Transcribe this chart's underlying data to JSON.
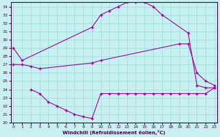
{
  "xlabel": "Windchill (Refroidissement éolien,°C)",
  "background_color": "#c8f0f0",
  "line_color": "#990099",
  "grid_color": "#99dddd",
  "xlim": [
    -0.3,
    23.3
  ],
  "ylim": [
    20,
    34.5
  ],
  "yticks": [
    20,
    21,
    22,
    23,
    24,
    25,
    26,
    27,
    28,
    29,
    30,
    31,
    32,
    33,
    34
  ],
  "xticks": [
    0,
    1,
    2,
    3,
    4,
    5,
    6,
    7,
    8,
    9,
    10,
    11,
    12,
    13,
    14,
    15,
    16,
    17,
    18,
    19,
    20,
    21,
    22,
    23
  ],
  "s1x": [
    0,
    1,
    9,
    10,
    11,
    12,
    13,
    14,
    15,
    16,
    17,
    20,
    21,
    22,
    23
  ],
  "s1y": [
    29.0,
    27.5,
    31.5,
    33.0,
    33.5,
    34.0,
    34.5,
    34.5,
    34.5,
    34.0,
    33.0,
    30.8,
    24.5,
    24.2,
    24.2
  ],
  "s2x": [
    0,
    1,
    2,
    3,
    9,
    10,
    19,
    20,
    21,
    22,
    23
  ],
  "s2y": [
    27.0,
    27.0,
    26.8,
    26.5,
    27.2,
    27.5,
    29.5,
    29.5,
    26.0,
    25.0,
    24.5
  ],
  "s3x": [
    2,
    3,
    4,
    5,
    6,
    7,
    8,
    9,
    10,
    11,
    12,
    13,
    14,
    15,
    16,
    17,
    18,
    19,
    20,
    21,
    22,
    23
  ],
  "s3y": [
    24.0,
    23.5,
    22.5,
    22.0,
    21.5,
    21.0,
    20.7,
    20.5,
    23.5,
    23.5,
    23.5,
    23.5,
    23.5,
    23.5,
    23.5,
    23.5,
    23.5,
    23.5,
    23.5,
    23.5,
    23.5,
    24.2
  ]
}
